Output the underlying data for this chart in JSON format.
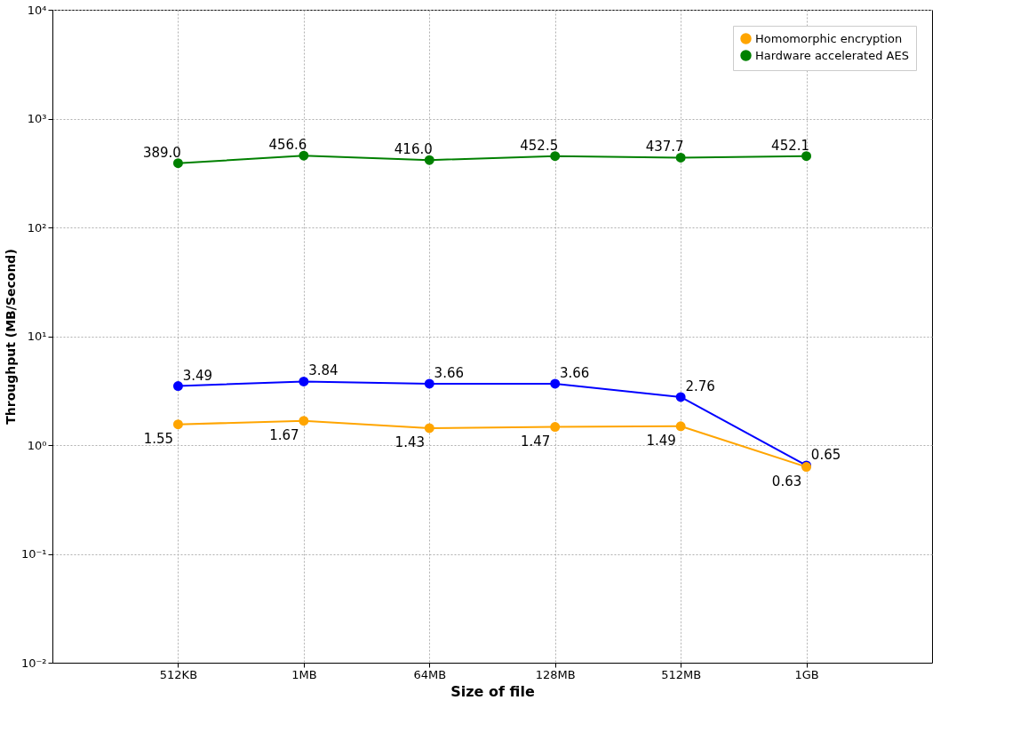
{
  "chart_data": {
    "type": "line",
    "xlabel": "Size of file",
    "ylabel": "Throughput (MB/Second)",
    "categories": [
      "512KB",
      "1MB",
      "64MB",
      "128MB",
      "512MB",
      "1GB"
    ],
    "series": [
      {
        "color": "#0000ff",
        "values": [
          3.49,
          3.84,
          3.66,
          3.66,
          2.76,
          0.65
        ],
        "value_labels": [
          "3.49",
          "3.84",
          "3.66",
          "3.66",
          "2.76",
          "0.65"
        ]
      },
      {
        "name": "Homomorphic encryption",
        "color": "#ffa500",
        "values": [
          1.55,
          1.67,
          1.43,
          1.47,
          1.49,
          0.63
        ],
        "value_labels": [
          "1.55",
          "1.67",
          "1.43",
          "1.47",
          "1.49",
          "0.63"
        ]
      },
      {
        "name": "Hardware accelerated AES",
        "color": "#008000",
        "values": [
          389.0,
          456.6,
          416.0,
          452.5,
          437.7,
          452.1
        ],
        "value_labels": [
          "389.0",
          "456.6",
          "416.0",
          "452.5",
          "437.7",
          "452.1"
        ]
      }
    ],
    "log": true,
    "ylim": [
      0.01,
      10000
    ],
    "yticks": [
      {
        "value": 0.01,
        "label": "10⁻²"
      },
      {
        "value": 0.1,
        "label": "10⁻¹"
      },
      {
        "value": 1,
        "label": "10⁰"
      },
      {
        "value": 10,
        "label": "10¹"
      },
      {
        "value": 100,
        "label": "10²"
      },
      {
        "value": 1000,
        "label": "10³"
      },
      {
        "value": 10000,
        "label": "10⁴"
      }
    ],
    "grid": true,
    "legend": "top right",
    "marker": "circle",
    "line_style": "solid"
  }
}
